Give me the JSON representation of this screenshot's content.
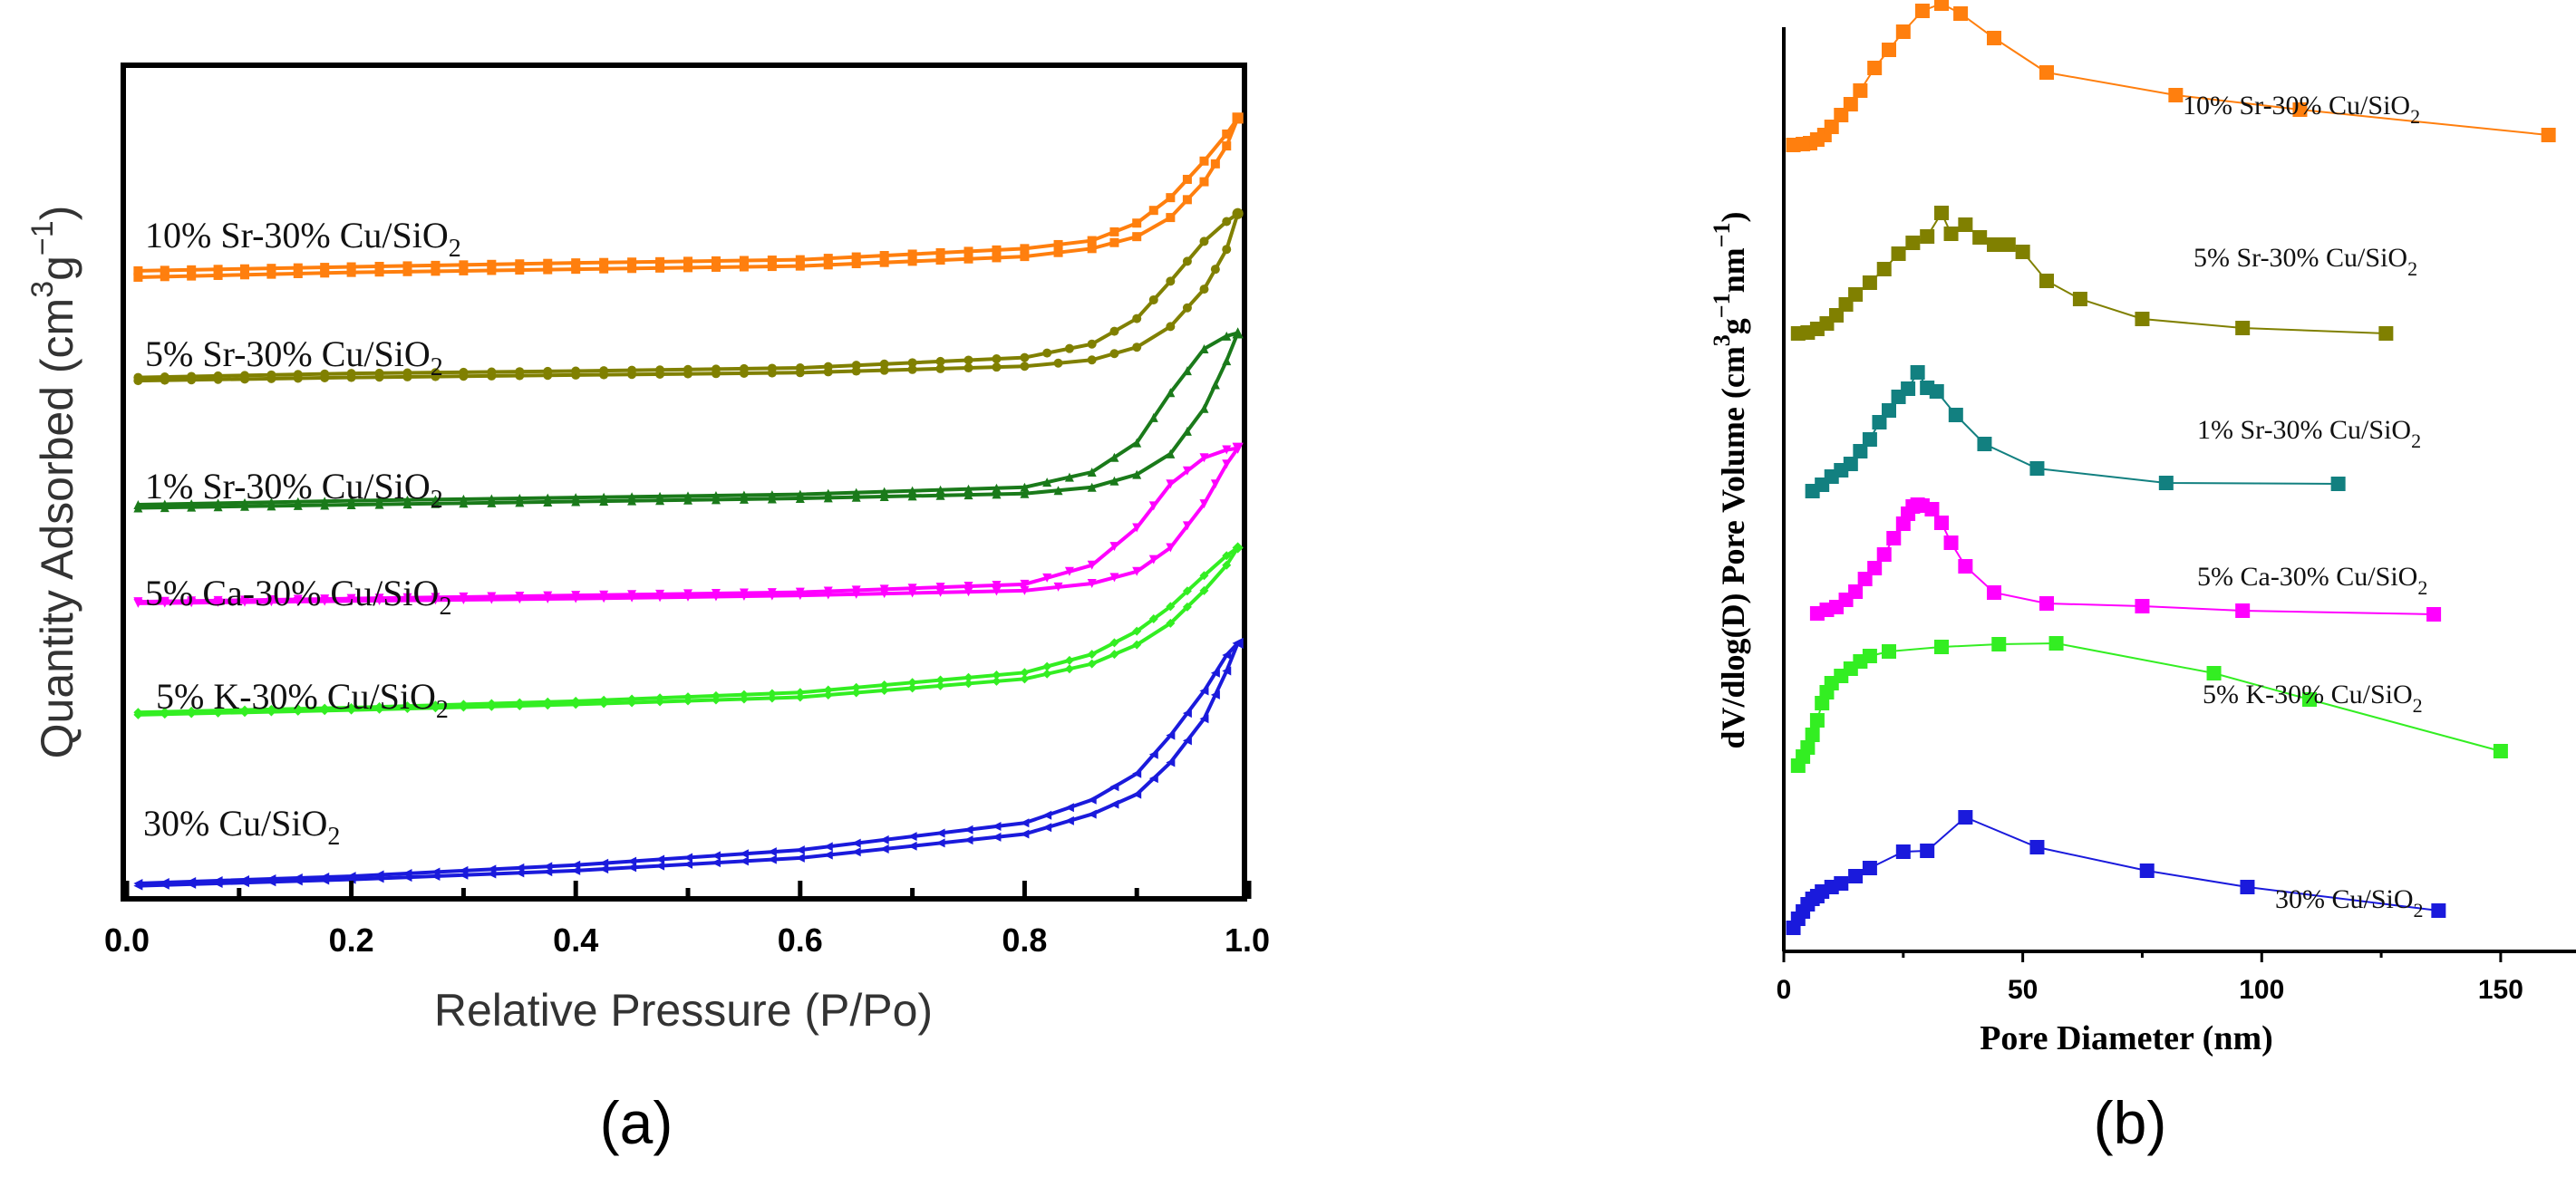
{
  "chart_data": [
    {
      "type": "line",
      "panel": "(a)",
      "xlabel": "Relative Pressure (P/Po)",
      "ylabel_main": "Quantity Adsorbed (cm",
      "ylabel_sup1": "3",
      "ylabel_g": "g",
      "ylabel_sup2": "−1",
      "ylabel_close": ")",
      "xlim": [
        0.0,
        1.0
      ],
      "xticks": [
        "0.0",
        "0.2",
        "0.4",
        "0.6",
        "0.8",
        "1.0"
      ],
      "ylim": [
        0,
        100
      ],
      "series": [
        {
          "name_main": "10% Sr-30% Cu/SiO",
          "name_sub": "2",
          "color": "#ff7f0e",
          "marker": "square",
          "x": [
            0.01,
            0.2,
            0.4,
            0.6,
            0.8,
            0.86,
            0.9,
            0.93,
            0.96,
            0.98,
            0.99
          ],
          "ads": [
            77.0,
            77.6,
            78.0,
            78.4,
            79.6,
            80.6,
            82.1,
            84.5,
            89.0,
            93.5,
            97.0
          ],
          "des": [
            77.8,
            78.3,
            78.8,
            79.2,
            80.6,
            81.6,
            83.8,
            87.0,
            91.6,
            95.0,
            97.0
          ]
        },
        {
          "name_main": "5% Sr-30% Cu/SiO",
          "name_sub": "2",
          "color": "#808000",
          "marker": "circle",
          "x": [
            0.01,
            0.2,
            0.4,
            0.6,
            0.8,
            0.86,
            0.9,
            0.93,
            0.96,
            0.98,
            0.99
          ],
          "ads": [
            64.0,
            64.4,
            64.7,
            65.0,
            65.8,
            66.6,
            68.2,
            70.8,
            75.5,
            80.5,
            85.0
          ],
          "des": [
            64.4,
            64.9,
            65.2,
            65.6,
            66.9,
            68.6,
            71.8,
            76.5,
            81.5,
            84.0,
            85.0
          ]
        },
        {
          "name_main": "1% Sr-30% Cu/SiO",
          "name_sub": "2",
          "color": "#1a7a1a",
          "marker": "triangle-up",
          "x": [
            0.01,
            0.2,
            0.4,
            0.6,
            0.8,
            0.86,
            0.9,
            0.93,
            0.96,
            0.98,
            0.99
          ],
          "ads": [
            48.0,
            48.4,
            48.8,
            49.2,
            49.8,
            50.6,
            52.2,
            54.8,
            60.5,
            66.5,
            70.0
          ],
          "des": [
            48.4,
            48.9,
            49.3,
            49.7,
            50.6,
            52.5,
            56.2,
            62.5,
            68.0,
            69.6,
            70.0
          ]
        },
        {
          "name_main": "5% Ca-30% Cu/SiO",
          "name_sub": "2",
          "color": "#ff00ff",
          "marker": "triangle-down",
          "x": [
            0.01,
            0.2,
            0.4,
            0.6,
            0.8,
            0.86,
            0.9,
            0.93,
            0.96,
            0.98,
            0.99
          ],
          "ads": [
            36.0,
            36.3,
            36.6,
            37.0,
            37.6,
            38.5,
            40.0,
            43.0,
            48.5,
            53.5,
            55.5
          ],
          "des": [
            36.2,
            36.6,
            37.0,
            37.4,
            38.4,
            40.8,
            45.5,
            51.0,
            54.3,
            55.3,
            55.5
          ]
        },
        {
          "name_main": "5% K-30% Cu/SiO",
          "name_sub": "2",
          "color": "#33ee22",
          "marker": "diamond",
          "x": [
            0.01,
            0.2,
            0.4,
            0.6,
            0.8,
            0.86,
            0.9,
            0.93,
            0.96,
            0.98,
            0.99
          ],
          "ads": [
            22.0,
            22.6,
            23.3,
            24.2,
            26.5,
            28.4,
            30.8,
            33.5,
            37.6,
            40.8,
            43.0
          ],
          "des": [
            22.3,
            22.9,
            23.7,
            24.8,
            27.3,
            29.6,
            32.5,
            35.6,
            39.5,
            42.0,
            43.0
          ]
        },
        {
          "name_main": "30% Cu/SiO",
          "name_sub": "2",
          "color": "#1a1adc",
          "marker": "triangle-left",
          "x": [
            0.01,
            0.2,
            0.4,
            0.6,
            0.8,
            0.86,
            0.9,
            0.93,
            0.96,
            0.98,
            0.99
          ],
          "ads": [
            0.5,
            1.3,
            2.4,
            4.0,
            7.0,
            9.5,
            12.0,
            16.0,
            21.5,
            27.5,
            31.0
          ],
          "des": [
            0.8,
            1.7,
            3.1,
            5.0,
            8.4,
            11.3,
            14.6,
            19.4,
            25.0,
            29.5,
            31.0
          ]
        }
      ]
    },
    {
      "type": "line",
      "panel": "(b)",
      "xlabel": "Pore Diameter (nm)",
      "ylabel_main": "dV/dlog(D) Pore Volume (cm",
      "ylabel_sup1": "3",
      "ylabel_g": "g",
      "ylabel_sup2": "−1",
      "ylabel_nm": "nm",
      "ylabel_close": ")",
      "xlim": [
        0,
        165
      ],
      "xticks": [
        "0",
        "50",
        "100",
        "150"
      ],
      "xtick_values": [
        0,
        50,
        100,
        150
      ],
      "ylim": [
        0,
        100
      ],
      "series": [
        {
          "name_main": "10% Sr-30% Cu/SiO",
          "name_sub": "2",
          "color": "#ff7f0e",
          "marker": "square",
          "x": [
            2,
            4,
            5.5,
            7,
            8.5,
            10,
            12,
            14,
            16,
            19,
            22,
            25,
            29,
            33,
            37,
            44,
            55,
            82,
            108,
            160
          ],
          "y": [
            88.0,
            88.1,
            88.2,
            88.6,
            89.1,
            90.0,
            91.3,
            92.5,
            94.0,
            96.5,
            98.5,
            100.5,
            102.8,
            103.6,
            102.5,
            99.8,
            96.0,
            93.5,
            91.9,
            89.1
          ]
        },
        {
          "name_main": "5% Sr-30% Cu/SiO",
          "name_sub": "2",
          "color": "#808000",
          "marker": "square",
          "x": [
            3,
            5,
            7,
            9,
            11,
            13,
            15,
            18,
            21,
            24,
            27,
            30,
            33,
            35,
            38,
            41,
            44,
            47,
            50,
            55,
            62,
            75,
            96,
            126
          ],
          "y": [
            67.2,
            67.3,
            67.7,
            68.3,
            69.2,
            70.4,
            71.5,
            72.8,
            74.3,
            76.0,
            77.2,
            77.9,
            80.5,
            78.2,
            79.2,
            77.8,
            77.0,
            77.0,
            76.2,
            73.0,
            71.0,
            68.8,
            67.8,
            67.2
          ]
        },
        {
          "name_main": "1% Sr-30% Cu/SiO",
          "name_sub": "2",
          "color": "#128080",
          "marker": "square",
          "x": [
            6,
            8,
            10,
            12,
            14,
            16,
            18,
            20,
            22,
            24,
            26,
            28,
            30,
            32,
            36,
            42,
            53,
            80,
            116
          ],
          "y": [
            49.8,
            50.5,
            51.4,
            52.1,
            52.8,
            54.2,
            55.5,
            57.4,
            58.7,
            60.2,
            61.1,
            62.9,
            61.2,
            60.8,
            58.2,
            55.0,
            52.3,
            50.7,
            50.6
          ]
        },
        {
          "name_main": "5% Ca-30% Cu/SiO",
          "name_sub": "2",
          "color": "#ff00ff",
          "marker": "square",
          "x": [
            7,
            9,
            11,
            13,
            15,
            17,
            19,
            21,
            23,
            25,
            26,
            27,
            28,
            29,
            31,
            33,
            35,
            38,
            44,
            55,
            75,
            96,
            136
          ],
          "y": [
            36.3,
            36.7,
            37.0,
            37.8,
            38.7,
            40.1,
            41.3,
            42.8,
            44.6,
            46.2,
            47.3,
            48.1,
            48.3,
            48.2,
            47.8,
            46.3,
            44.1,
            41.5,
            38.6,
            37.4,
            37.1,
            36.6,
            36.2
          ]
        },
        {
          "name_main": "5% K-30% Cu/SiO",
          "name_sub": "2",
          "color": "#33ee22",
          "marker": "square",
          "x": [
            3,
            4,
            5,
            6,
            7,
            8,
            9,
            10,
            12,
            14,
            16,
            18,
            22,
            33,
            45,
            57,
            90,
            110,
            150
          ],
          "y": [
            19.5,
            20.5,
            21.5,
            22.9,
            24.5,
            26.4,
            27.6,
            28.6,
            29.4,
            30.2,
            31.0,
            31.6,
            32.1,
            32.6,
            32.9,
            33.0,
            29.7,
            26.8,
            21.1
          ]
        },
        {
          "name_main": "30% Cu/SiO",
          "name_sub": "2",
          "color": "#1a1adc",
          "marker": "square",
          "x": [
            2,
            3,
            4,
            5,
            6,
            7,
            8,
            10,
            12,
            15,
            18,
            25,
            30,
            38,
            53,
            76,
            97,
            137
          ],
          "y": [
            1.6,
            2.6,
            3.4,
            4.2,
            4.8,
            5.1,
            5.6,
            6.1,
            6.5,
            7.3,
            8.2,
            10.0,
            10.1,
            13.8,
            10.5,
            7.9,
            6.1,
            3.5
          ]
        }
      ]
    }
  ],
  "captions": {
    "a": "(a)",
    "b": "(b)"
  }
}
